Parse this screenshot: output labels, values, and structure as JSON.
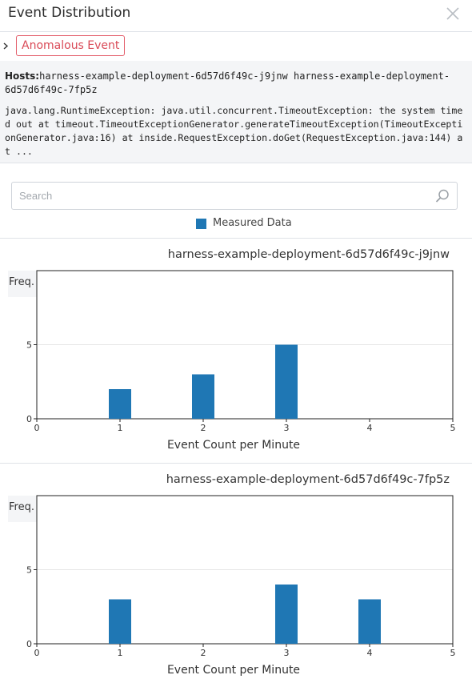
{
  "header": {
    "title": "Event Distribution"
  },
  "event": {
    "badge": "Anomalous Event",
    "hosts_label": "Hosts:",
    "hosts_value": "harness-example-deployment-6d57d6f49c-j9jnw harness-example-deployment-6d57d6f49c-7fp5z",
    "trace": "java.lang.RuntimeException: java.util.concurrent.TimeoutException: the system timed out  at timeout.TimeoutExceptionGenerator.generateTimeoutException(TimeoutExceptionGenerator.java:16)  at inside.RequestException.doGet(RequestException.java:144)  at ..."
  },
  "search": {
    "placeholder": "Search",
    "value": ""
  },
  "legend": {
    "label": "Measured Data",
    "color": "#1f77b4"
  },
  "chart_data": [
    {
      "type": "bar",
      "title": "harness-example-deployment-6d57d6f49c-j9jnw",
      "xlabel": "Event Count per Minute",
      "ylabel": "Freq.",
      "xlim": [
        0,
        5
      ],
      "ylim": [
        0,
        10
      ],
      "xticks": [
        0,
        1,
        2,
        3,
        4,
        5
      ],
      "yticks": [
        0,
        5
      ],
      "x": [
        1,
        2,
        3
      ],
      "values": [
        2,
        3,
        5
      ],
      "series_name": "Measured Data",
      "color": "#1f77b4"
    },
    {
      "type": "bar",
      "title": "harness-example-deployment-6d57d6f49c-7fp5z",
      "xlabel": "Event Count per Minute",
      "ylabel": "Freq.",
      "xlim": [
        0,
        5
      ],
      "ylim": [
        0,
        10
      ],
      "xticks": [
        0,
        1,
        2,
        3,
        4,
        5
      ],
      "yticks": [
        0,
        5
      ],
      "x": [
        1,
        3,
        4
      ],
      "values": [
        3,
        4,
        3
      ],
      "series_name": "Measured Data",
      "color": "#1f77b4"
    }
  ]
}
